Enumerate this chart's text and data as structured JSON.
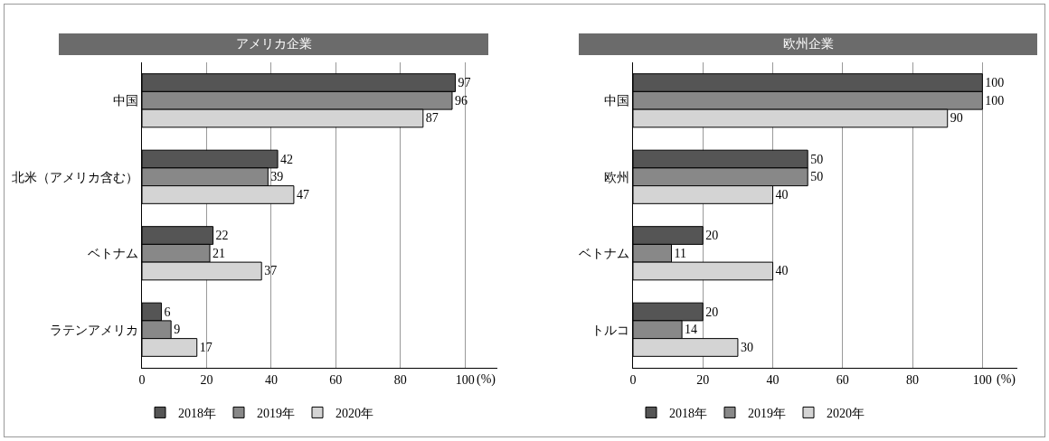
{
  "chart_data": [
    {
      "type": "bar",
      "orientation": "horizontal",
      "title": "アメリカ企業",
      "categories": [
        "中国",
        "北米（アメリカ含む）",
        "ベトナム",
        "ラテンアメリカ"
      ],
      "series": [
        {
          "name": "2018年",
          "color": "#555555",
          "values": [
            97,
            42,
            22,
            6
          ]
        },
        {
          "name": "2019年",
          "color": "#888888",
          "values": [
            96,
            39,
            21,
            9
          ]
        },
        {
          "name": "2020年",
          "color": "#d4d4d4",
          "values": [
            87,
            47,
            37,
            17
          ]
        }
      ],
      "xlim": [
        0,
        110
      ],
      "xticks": [
        0,
        20,
        40,
        60,
        80,
        100
      ],
      "xlabel": "(%)",
      "grid": "x",
      "legend": "bottom left",
      "data_labels": true
    },
    {
      "type": "bar",
      "orientation": "horizontal",
      "title": "欧州企業",
      "categories": [
        "中国",
        "欧州",
        "ベトナム",
        "トルコ"
      ],
      "series": [
        {
          "name": "2018年",
          "color": "#555555",
          "values": [
            100,
            50,
            20,
            20
          ]
        },
        {
          "name": "2019年",
          "color": "#888888",
          "values": [
            100,
            50,
            11,
            14
          ]
        },
        {
          "name": "2020年",
          "color": "#d4d4d4",
          "values": [
            90,
            40,
            40,
            30
          ]
        }
      ],
      "xlim": [
        0,
        110
      ],
      "xticks": [
        0,
        20,
        40,
        60,
        80,
        100
      ],
      "xlabel": "(%)",
      "grid": "x",
      "legend": "bottom left",
      "data_labels": true
    }
  ]
}
